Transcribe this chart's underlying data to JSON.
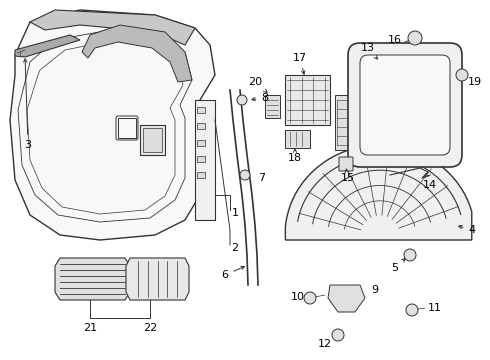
{
  "bg_color": "#ffffff",
  "lc": "#333333",
  "tc": "#000000",
  "figsize": [
    4.9,
    3.6
  ],
  "dpi": 100,
  "xlim": [
    0,
    490
  ],
  "ylim": [
    0,
    360
  ]
}
